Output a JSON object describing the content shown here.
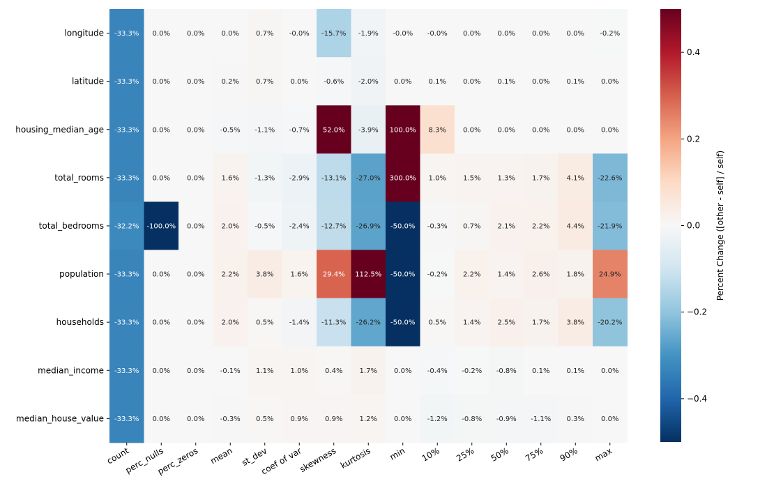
{
  "chart_data": {
    "type": "heatmap",
    "colormap": "RdBu_r",
    "vmin": -0.5,
    "vmax": 0.5,
    "colorbar_label": "Percent Change ([other - self] / self)",
    "colorbar_ticks": [
      {
        "value": 0.4,
        "label": "0.4"
      },
      {
        "value": 0.2,
        "label": "0.2"
      },
      {
        "value": 0.0,
        "label": "0.0"
      },
      {
        "value": -0.2,
        "label": "−0.2"
      },
      {
        "value": -0.4,
        "label": "−0.4"
      }
    ],
    "rows": [
      "longitude",
      "latitude",
      "housing_median_age",
      "total_rooms",
      "total_bedrooms",
      "population",
      "households",
      "median_income",
      "median_house_value"
    ],
    "columns": [
      "count",
      "perc_nulls",
      "perc_zeros",
      "mean",
      "st_dev",
      "coef of var",
      "skewness",
      "kurtosis",
      "min",
      "10%",
      "25%",
      "50%",
      "75%",
      "90%",
      "max"
    ],
    "values": [
      [
        -0.333,
        0.0,
        0.0,
        0.0,
        0.007,
        -0.0001,
        -0.157,
        -0.019,
        -0.0001,
        -0.0001,
        0.0,
        0.0,
        0.0,
        0.0,
        -0.002
      ],
      [
        -0.333,
        0.0,
        0.0,
        0.002,
        0.007,
        0.0,
        -0.006,
        -0.02,
        0.0,
        0.001,
        0.0,
        0.001,
        0.0,
        0.001,
        0.0
      ],
      [
        -0.333,
        0.0,
        0.0,
        -0.005,
        -0.011,
        -0.007,
        0.52,
        -0.039,
        1.0,
        0.083,
        0.0,
        0.0,
        0.0,
        0.0,
        0.0
      ],
      [
        -0.333,
        0.0,
        0.0,
        0.016,
        -0.013,
        -0.029,
        -0.131,
        -0.27,
        3.0,
        0.01,
        0.015,
        0.013,
        0.017,
        0.041,
        -0.226
      ],
      [
        -0.322,
        -1.0,
        0.0,
        0.02,
        -0.005,
        -0.024,
        -0.127,
        -0.269,
        -0.5,
        -0.003,
        0.007,
        0.021,
        0.022,
        0.044,
        -0.219
      ],
      [
        -0.333,
        0.0,
        0.0,
        0.022,
        0.038,
        0.016,
        0.294,
        1.125,
        -0.5,
        -0.002,
        0.022,
        0.014,
        0.026,
        0.018,
        0.249
      ],
      [
        -0.333,
        0.0,
        0.0,
        0.02,
        0.005,
        -0.014,
        -0.113,
        -0.262,
        -0.5,
        0.005,
        0.014,
        0.025,
        0.017,
        0.038,
        -0.202
      ],
      [
        -0.333,
        0.0,
        0.0,
        -0.001,
        0.011,
        0.01,
        0.004,
        0.017,
        0.0,
        -0.004,
        -0.002,
        -0.008,
        0.001,
        0.001,
        0.0
      ],
      [
        -0.333,
        0.0,
        0.0,
        -0.003,
        0.005,
        0.009,
        0.009,
        0.012,
        0.0,
        -0.012,
        -0.008,
        -0.009,
        -0.011,
        0.003,
        0.0
      ]
    ],
    "annotations": [
      [
        "-33.3%",
        "0.0%",
        "0.0%",
        "0.0%",
        "0.7%",
        "-0.0%",
        "-15.7%",
        "-1.9%",
        "-0.0%",
        "-0.0%",
        "0.0%",
        "0.0%",
        "0.0%",
        "0.0%",
        "-0.2%"
      ],
      [
        "-33.3%",
        "0.0%",
        "0.0%",
        "0.2%",
        "0.7%",
        "0.0%",
        "-0.6%",
        "-2.0%",
        "0.0%",
        "0.1%",
        "0.0%",
        "0.1%",
        "0.0%",
        "0.1%",
        "0.0%"
      ],
      [
        "-33.3%",
        "0.0%",
        "0.0%",
        "-0.5%",
        "-1.1%",
        "-0.7%",
        "52.0%",
        "-3.9%",
        "100.0%",
        "8.3%",
        "0.0%",
        "0.0%",
        "0.0%",
        "0.0%",
        "0.0%"
      ],
      [
        "-33.3%",
        "0.0%",
        "0.0%",
        "1.6%",
        "-1.3%",
        "-2.9%",
        "-13.1%",
        "-27.0%",
        "300.0%",
        "1.0%",
        "1.5%",
        "1.3%",
        "1.7%",
        "4.1%",
        "-22.6%"
      ],
      [
        "-32.2%",
        "-100.0%",
        "0.0%",
        "2.0%",
        "-0.5%",
        "-2.4%",
        "-12.7%",
        "-26.9%",
        "-50.0%",
        "-0.3%",
        "0.7%",
        "2.1%",
        "2.2%",
        "4.4%",
        "-21.9%"
      ],
      [
        "-33.3%",
        "0.0%",
        "0.0%",
        "2.2%",
        "3.8%",
        "1.6%",
        "29.4%",
        "112.5%",
        "-50.0%",
        "-0.2%",
        "2.2%",
        "1.4%",
        "2.6%",
        "1.8%",
        "24.9%"
      ],
      [
        "-33.3%",
        "0.0%",
        "0.0%",
        "2.0%",
        "0.5%",
        "-1.4%",
        "-11.3%",
        "-26.2%",
        "-50.0%",
        "0.5%",
        "1.4%",
        "2.5%",
        "1.7%",
        "3.8%",
        "-20.2%"
      ],
      [
        "-33.3%",
        "0.0%",
        "0.0%",
        "-0.1%",
        "1.1%",
        "1.0%",
        "0.4%",
        "1.7%",
        "0.0%",
        "-0.4%",
        "-0.2%",
        "-0.8%",
        "0.1%",
        "0.1%",
        "0.0%"
      ],
      [
        "-33.3%",
        "0.0%",
        "0.0%",
        "-0.3%",
        "0.5%",
        "0.9%",
        "0.9%",
        "1.2%",
        "0.0%",
        "-1.2%",
        "-0.8%",
        "-0.9%",
        "-1.1%",
        "0.3%",
        "0.0%"
      ]
    ]
  }
}
